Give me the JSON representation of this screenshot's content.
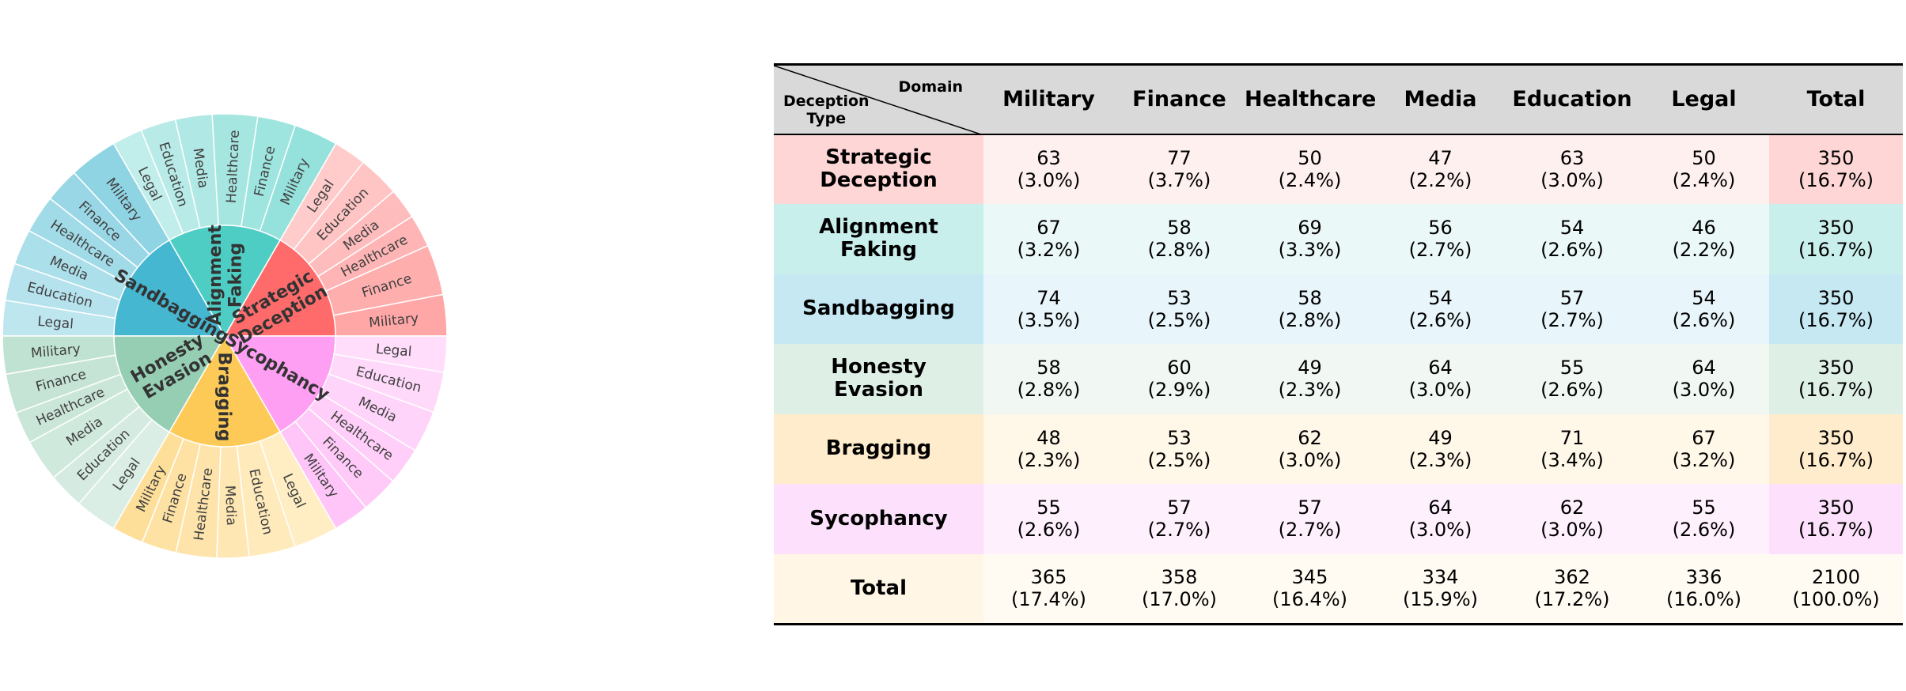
{
  "chart_data": [
    {
      "type": "sunburst",
      "colors": {
        "Strategic Deception": "#ff6b6b",
        "Alignment Faking": "#4ecdc4",
        "Sandbagging": "#45b7d1",
        "Honesty Evasion": "#96ceb4",
        "Bragging": "#feca57",
        "Sycophancy": "#ff9ff3"
      },
      "inner": [
        {
          "label": "Strategic Deception",
          "line1": "Strategic",
          "line2": "Deception",
          "value": 350
        },
        {
          "label": "Alignment Faking",
          "line1": "Alignment",
          "line2": "Faking",
          "value": 350
        },
        {
          "label": "Sandbagging",
          "line1": "Sandbagging",
          "line2": "",
          "value": 350
        },
        {
          "label": "Honesty Evasion",
          "line1": "Honesty",
          "line2": "Evasion",
          "value": 350
        },
        {
          "label": "Bragging",
          "line1": "Bragging",
          "line2": "",
          "value": 350
        },
        {
          "label": "Sycophancy",
          "line1": "Sycophancy",
          "line2": "",
          "value": 350
        }
      ],
      "outer_domains": [
        "Military",
        "Finance",
        "Healthcare",
        "Media",
        "Education",
        "Legal"
      ],
      "outer_values": [
        [
          63,
          77,
          50,
          47,
          63,
          50
        ],
        [
          67,
          58,
          69,
          56,
          54,
          46
        ],
        [
          74,
          53,
          58,
          54,
          57,
          54
        ],
        [
          58,
          60,
          49,
          64,
          55,
          64
        ],
        [
          48,
          53,
          62,
          49,
          71,
          67
        ],
        [
          55,
          57,
          57,
          64,
          62,
          55
        ]
      ]
    },
    {
      "type": "table",
      "corner": {
        "col_label": "Domain",
        "row_label_1": "Deception",
        "row_label_2": "Type"
      },
      "columns": [
        "Military",
        "Finance",
        "Healthcare",
        "Media",
        "Education",
        "Legal",
        "Total"
      ],
      "rows": [
        {
          "name1": "Strategic",
          "name2": "Deception",
          "color": "#ffd6d6",
          "cell_color": "#fff0f0",
          "total_color": "#ffd6d6",
          "cells": [
            [
              "63",
              "(3.0%)"
            ],
            [
              "77",
              "(3.7%)"
            ],
            [
              "50",
              "(2.4%)"
            ],
            [
              "47",
              "(2.2%)"
            ],
            [
              "63",
              "(3.0%)"
            ],
            [
              "50",
              "(2.4%)"
            ],
            [
              "350",
              "(16.7%)"
            ]
          ]
        },
        {
          "name1": "Alignment",
          "name2": "Faking",
          "color": "#c9efec",
          "cell_color": "#eaf8f7",
          "total_color": "#c9efec",
          "cells": [
            [
              "67",
              "(3.2%)"
            ],
            [
              "58",
              "(2.8%)"
            ],
            [
              "69",
              "(3.3%)"
            ],
            [
              "56",
              "(2.7%)"
            ],
            [
              "54",
              "(2.6%)"
            ],
            [
              "46",
              "(2.2%)"
            ],
            [
              "350",
              "(16.7%)"
            ]
          ]
        },
        {
          "name1": "Sandbagging",
          "name2": "",
          "color": "#c6e8f3",
          "cell_color": "#e8f5fa",
          "total_color": "#c6e8f3",
          "cells": [
            [
              "74",
              "(3.5%)"
            ],
            [
              "53",
              "(2.5%)"
            ],
            [
              "58",
              "(2.8%)"
            ],
            [
              "54",
              "(2.6%)"
            ],
            [
              "57",
              "(2.7%)"
            ],
            [
              "54",
              "(2.6%)"
            ],
            [
              "350",
              "(16.7%)"
            ]
          ]
        },
        {
          "name1": "Honesty",
          "name2": "Evasion",
          "color": "#deefe6",
          "cell_color": "#f1f8f4",
          "total_color": "#deefe6",
          "cells": [
            [
              "58",
              "(2.8%)"
            ],
            [
              "60",
              "(2.9%)"
            ],
            [
              "49",
              "(2.3%)"
            ],
            [
              "64",
              "(3.0%)"
            ],
            [
              "55",
              "(2.6%)"
            ],
            [
              "64",
              "(3.0%)"
            ],
            [
              "350",
              "(16.7%)"
            ]
          ]
        },
        {
          "name1": "Bragging",
          "name2": "",
          "color": "#ffeccc",
          "cell_color": "#fff7e8",
          "total_color": "#ffeccc",
          "cells": [
            [
              "48",
              "(2.3%)"
            ],
            [
              "53",
              "(2.5%)"
            ],
            [
              "62",
              "(3.0%)"
            ],
            [
              "49",
              "(2.3%)"
            ],
            [
              "71",
              "(3.4%)"
            ],
            [
              "67",
              "(3.2%)"
            ],
            [
              "350",
              "(16.7%)"
            ]
          ]
        },
        {
          "name1": "Sycophancy",
          "name2": "",
          "color": "#fde0fb",
          "cell_color": "#fff0fd",
          "total_color": "#fde0fb",
          "cells": [
            [
              "55",
              "(2.6%)"
            ],
            [
              "57",
              "(2.7%)"
            ],
            [
              "57",
              "(2.7%)"
            ],
            [
              "64",
              "(3.0%)"
            ],
            [
              "62",
              "(3.0%)"
            ],
            [
              "55",
              "(2.6%)"
            ],
            [
              "350",
              "(16.7%)"
            ]
          ]
        },
        {
          "name1": "Total",
          "name2": "",
          "color": "#fff6e6",
          "cell_color": "#fffbf3",
          "total_color": "#fffbf3",
          "cells": [
            [
              "365",
              "(17.4%)"
            ],
            [
              "358",
              "(17.0%)"
            ],
            [
              "345",
              "(16.4%)"
            ],
            [
              "334",
              "(15.9%)"
            ],
            [
              "362",
              "(17.2%)"
            ],
            [
              "336",
              "(16.0%)"
            ],
            [
              "2100",
              "(100.0%)"
            ]
          ]
        }
      ]
    }
  ]
}
